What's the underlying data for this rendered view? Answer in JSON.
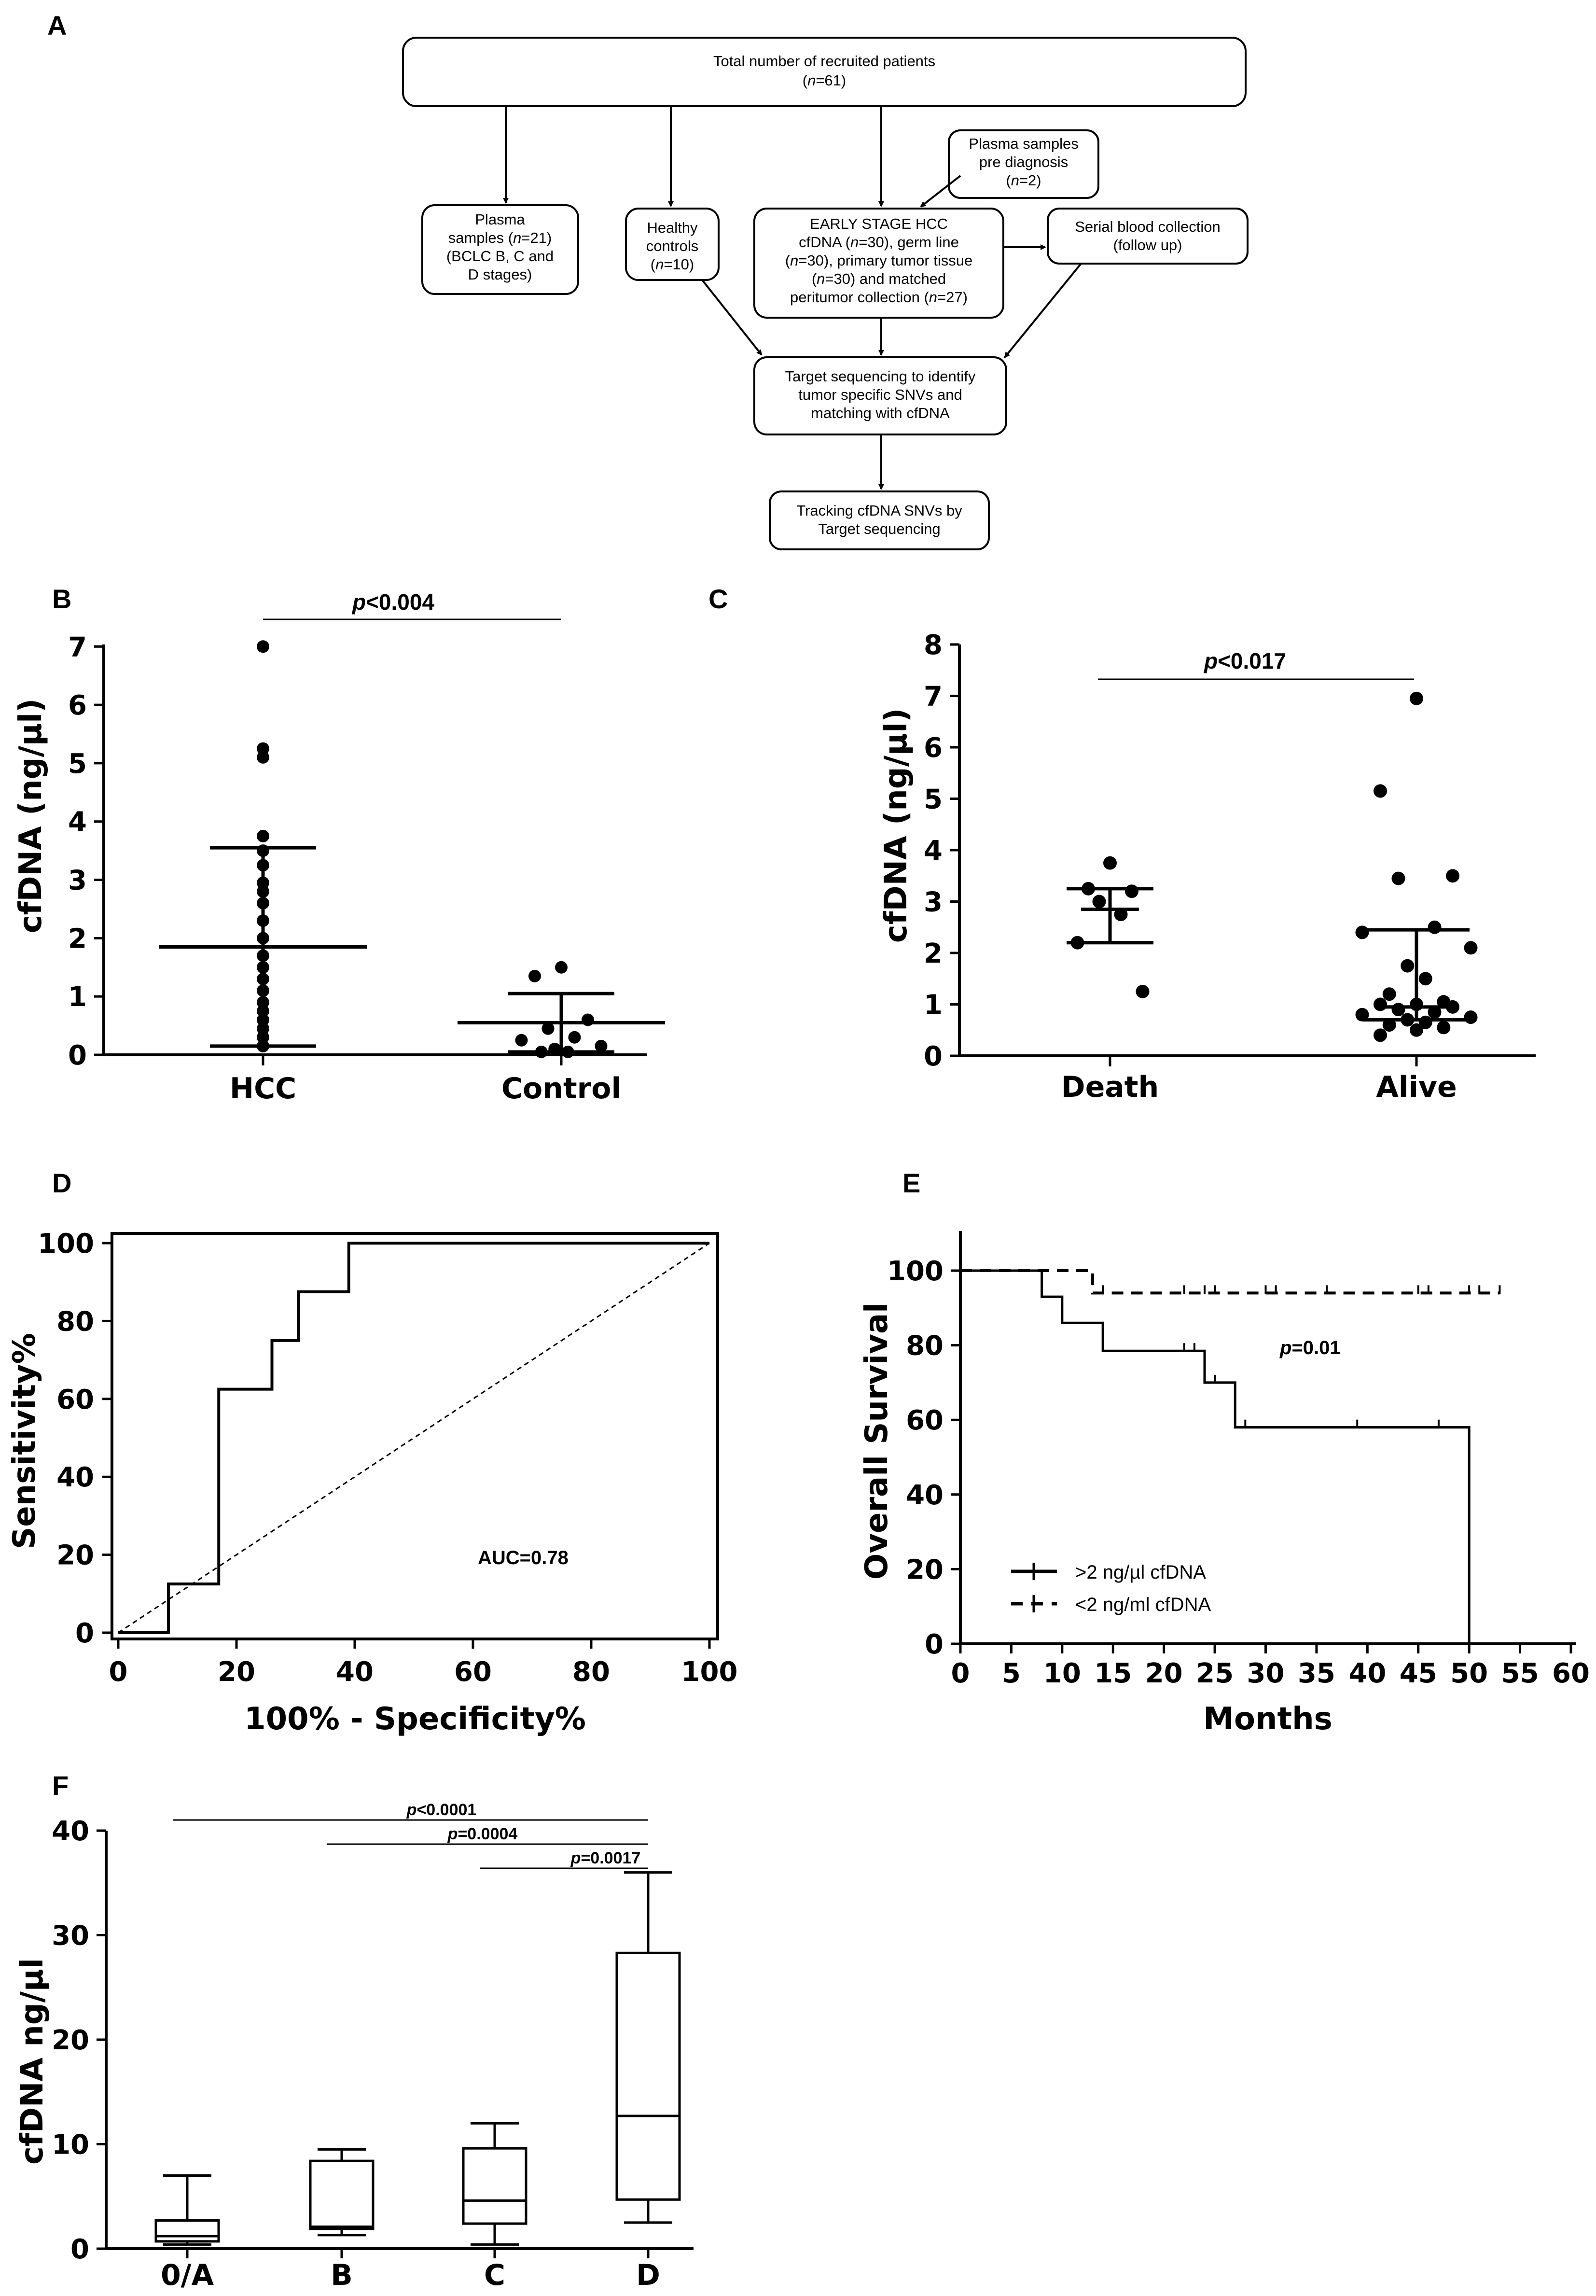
{
  "panels": {
    "A": "A",
    "B": "B",
    "C": "C",
    "D": "D",
    "E": "E",
    "F": "F"
  },
  "flowchart": {
    "top": [
      "Total number of recruited patients",
      "(n=61)"
    ],
    "plasma": [
      "Plasma",
      "samples (n=21)",
      "(BCLC B, C and",
      "D stages)"
    ],
    "healthy": [
      "Healthy",
      "controls",
      "(n=10)"
    ],
    "early": [
      "EARLY STAGE HCC",
      "cfDNA (n=30), germ line",
      "(n=30), primary tumor tissue",
      "(n=30) and matched",
      "peritumor collection (n=27)"
    ],
    "prediag": [
      "Plasma samples",
      "pre diagnosis",
      "(n=2)"
    ],
    "serial": [
      "Serial blood collection",
      "(follow up)"
    ],
    "target": [
      "Target sequencing to identify",
      "tumor specific SNVs and",
      "matching with cfDNA"
    ],
    "tracking": [
      "Tracking cfDNA SNVs by",
      "Target sequencing"
    ]
  },
  "chart_data": [
    {
      "panel": "B",
      "type": "scatter",
      "ylabel": "cfDNA (ng/µl)",
      "categories": [
        "HCC",
        "Control"
      ],
      "ylim": [
        0,
        7
      ],
      "yticks": [
        "0",
        "1",
        "2",
        "3",
        "4",
        "5",
        "6",
        "7"
      ],
      "annotation": "p<0.004",
      "series": [
        {
          "category": "HCC",
          "values": [
            7.0,
            5.25,
            5.1,
            3.75,
            3.5,
            3.25,
            2.95,
            2.8,
            2.6,
            2.3,
            2.0,
            1.7,
            1.5,
            1.3,
            1.1,
            0.9,
            0.75,
            0.6,
            0.45,
            0.3,
            0.15
          ],
          "mean": 1.85,
          "sd_low": 0.15,
          "sd_high": 3.55
        },
        {
          "category": "Control",
          "values": [
            1.5,
            1.35,
            0.6,
            0.45,
            0.3,
            0.25,
            0.15,
            0.1,
            0.05,
            0.05
          ],
          "mean": 0.55,
          "sd_low": 0.05,
          "sd_high": 1.05
        }
      ]
    },
    {
      "panel": "C",
      "type": "scatter",
      "ylabel": "cfDNA (ng/µl)",
      "categories": [
        "Death",
        "Alive"
      ],
      "ylim": [
        0,
        8
      ],
      "yticks": [
        "0",
        "1",
        "2",
        "3",
        "4",
        "5",
        "6",
        "7",
        "8"
      ],
      "annotation": "p<0.017",
      "series": [
        {
          "category": "Death",
          "values": [
            3.75,
            3.25,
            3.2,
            3.0,
            2.75,
            2.2,
            1.25
          ],
          "median": 2.85,
          "q1": 2.2,
          "q3": 3.25
        },
        {
          "category": "Alive",
          "values": [
            6.95,
            5.15,
            3.5,
            3.45,
            2.5,
            2.4,
            2.1,
            1.75,
            1.5,
            1.2,
            1.05,
            1.0,
            1.0,
            0.95,
            0.9,
            0.85,
            0.8,
            0.75,
            0.7,
            0.65,
            0.6,
            0.55,
            0.5,
            0.4
          ],
          "median": 0.95,
          "q1": 0.7,
          "q3": 2.45
        }
      ]
    },
    {
      "panel": "D",
      "type": "line",
      "xlabel": "100% - Specificity%",
      "ylabel": "Sensitivity%",
      "xlim": [
        0,
        100
      ],
      "ylim": [
        0,
        100
      ],
      "xticks": [
        "0",
        "20",
        "40",
        "60",
        "80",
        "100"
      ],
      "yticks": [
        "0",
        "20",
        "40",
        "60",
        "80",
        "100"
      ],
      "annotation": "AUC=0.78",
      "roc": [
        [
          0,
          0
        ],
        [
          8.5,
          0
        ],
        [
          8.5,
          12.5
        ],
        [
          17,
          12.5
        ],
        [
          17,
          62.5
        ],
        [
          26,
          62.5
        ],
        [
          26,
          75
        ],
        [
          30.5,
          75
        ],
        [
          30.5,
          87.5
        ],
        [
          39,
          87.5
        ],
        [
          39,
          100
        ],
        [
          100,
          100
        ]
      ],
      "reference": [
        [
          0,
          0
        ],
        [
          100,
          100
        ]
      ]
    },
    {
      "panel": "E",
      "type": "line",
      "xlabel": "Months",
      "ylabel": "Overall Survival",
      "xlim": [
        0,
        60
      ],
      "ylim": [
        0,
        100
      ],
      "xticks": [
        "0",
        "5",
        "10",
        "15",
        "20",
        "25",
        "30",
        "35",
        "40",
        "45",
        "50",
        "55",
        "60"
      ],
      "yticks": [
        "0",
        "20",
        "40",
        "60",
        "80",
        "100"
      ],
      "annotation": "p=0.01",
      "series": [
        {
          "name": ">2 ng/µl cfDNA",
          "style": "solid",
          "points": [
            [
              0,
              100
            ],
            [
              8,
              100
            ],
            [
              8,
              93
            ],
            [
              10,
              93
            ],
            [
              10,
              86
            ],
            [
              14,
              86
            ],
            [
              14,
              78.5
            ],
            [
              24,
              78.5
            ],
            [
              24,
              70
            ],
            [
              27,
              70
            ],
            [
              27,
              58
            ],
            [
              50,
              58
            ],
            [
              50,
              0
            ]
          ],
          "censor": [
            [
              22,
              78.5
            ],
            [
              23,
              78.5
            ],
            [
              25,
              70
            ],
            [
              28,
              58
            ],
            [
              39,
              58
            ],
            [
              47,
              58
            ]
          ]
        },
        {
          "name": "<2 ng/ml cfDNA",
          "style": "dashed",
          "points": [
            [
              0,
              100
            ],
            [
              13,
              100
            ],
            [
              13,
              94
            ],
            [
              53,
              94
            ]
          ],
          "censor": [
            [
              14,
              94
            ],
            [
              22,
              94
            ],
            [
              24,
              94
            ],
            [
              25,
              94
            ],
            [
              30,
              94
            ],
            [
              31,
              94
            ],
            [
              36,
              94
            ],
            [
              45,
              94
            ],
            [
              46,
              94
            ],
            [
              50,
              94
            ],
            [
              51,
              94
            ],
            [
              53,
              94
            ]
          ]
        }
      ]
    },
    {
      "panel": "F",
      "type": "box",
      "ylabel": "cfDNA ng/µl",
      "categories": [
        "0/A",
        "B",
        "C",
        "D"
      ],
      "ylim": [
        0,
        40
      ],
      "yticks": [
        "0",
        "10",
        "20",
        "30",
        "40"
      ],
      "boxes": [
        {
          "category": "0/A",
          "min": 0.4,
          "q1": 0.7,
          "median": 1.2,
          "q3": 2.7,
          "max": 7.0
        },
        {
          "category": "B",
          "min": 1.3,
          "q1": 1.9,
          "median": 2.1,
          "q3": 8.4,
          "max": 9.5
        },
        {
          "category": "C",
          "min": 0.4,
          "q1": 2.4,
          "median": 4.6,
          "q3": 9.6,
          "max": 12.0
        },
        {
          "category": "D",
          "min": 2.5,
          "q1": 4.7,
          "median": 12.7,
          "q3": 28.3,
          "max": 36.0
        }
      ],
      "annotations": [
        {
          "text": "p<0.0001",
          "from": "0/A",
          "to": "D"
        },
        {
          "text": "p=0.0004",
          "from": "B",
          "to": "D"
        },
        {
          "text": "p=0.0017",
          "from": "C",
          "to": "D"
        }
      ]
    }
  ]
}
